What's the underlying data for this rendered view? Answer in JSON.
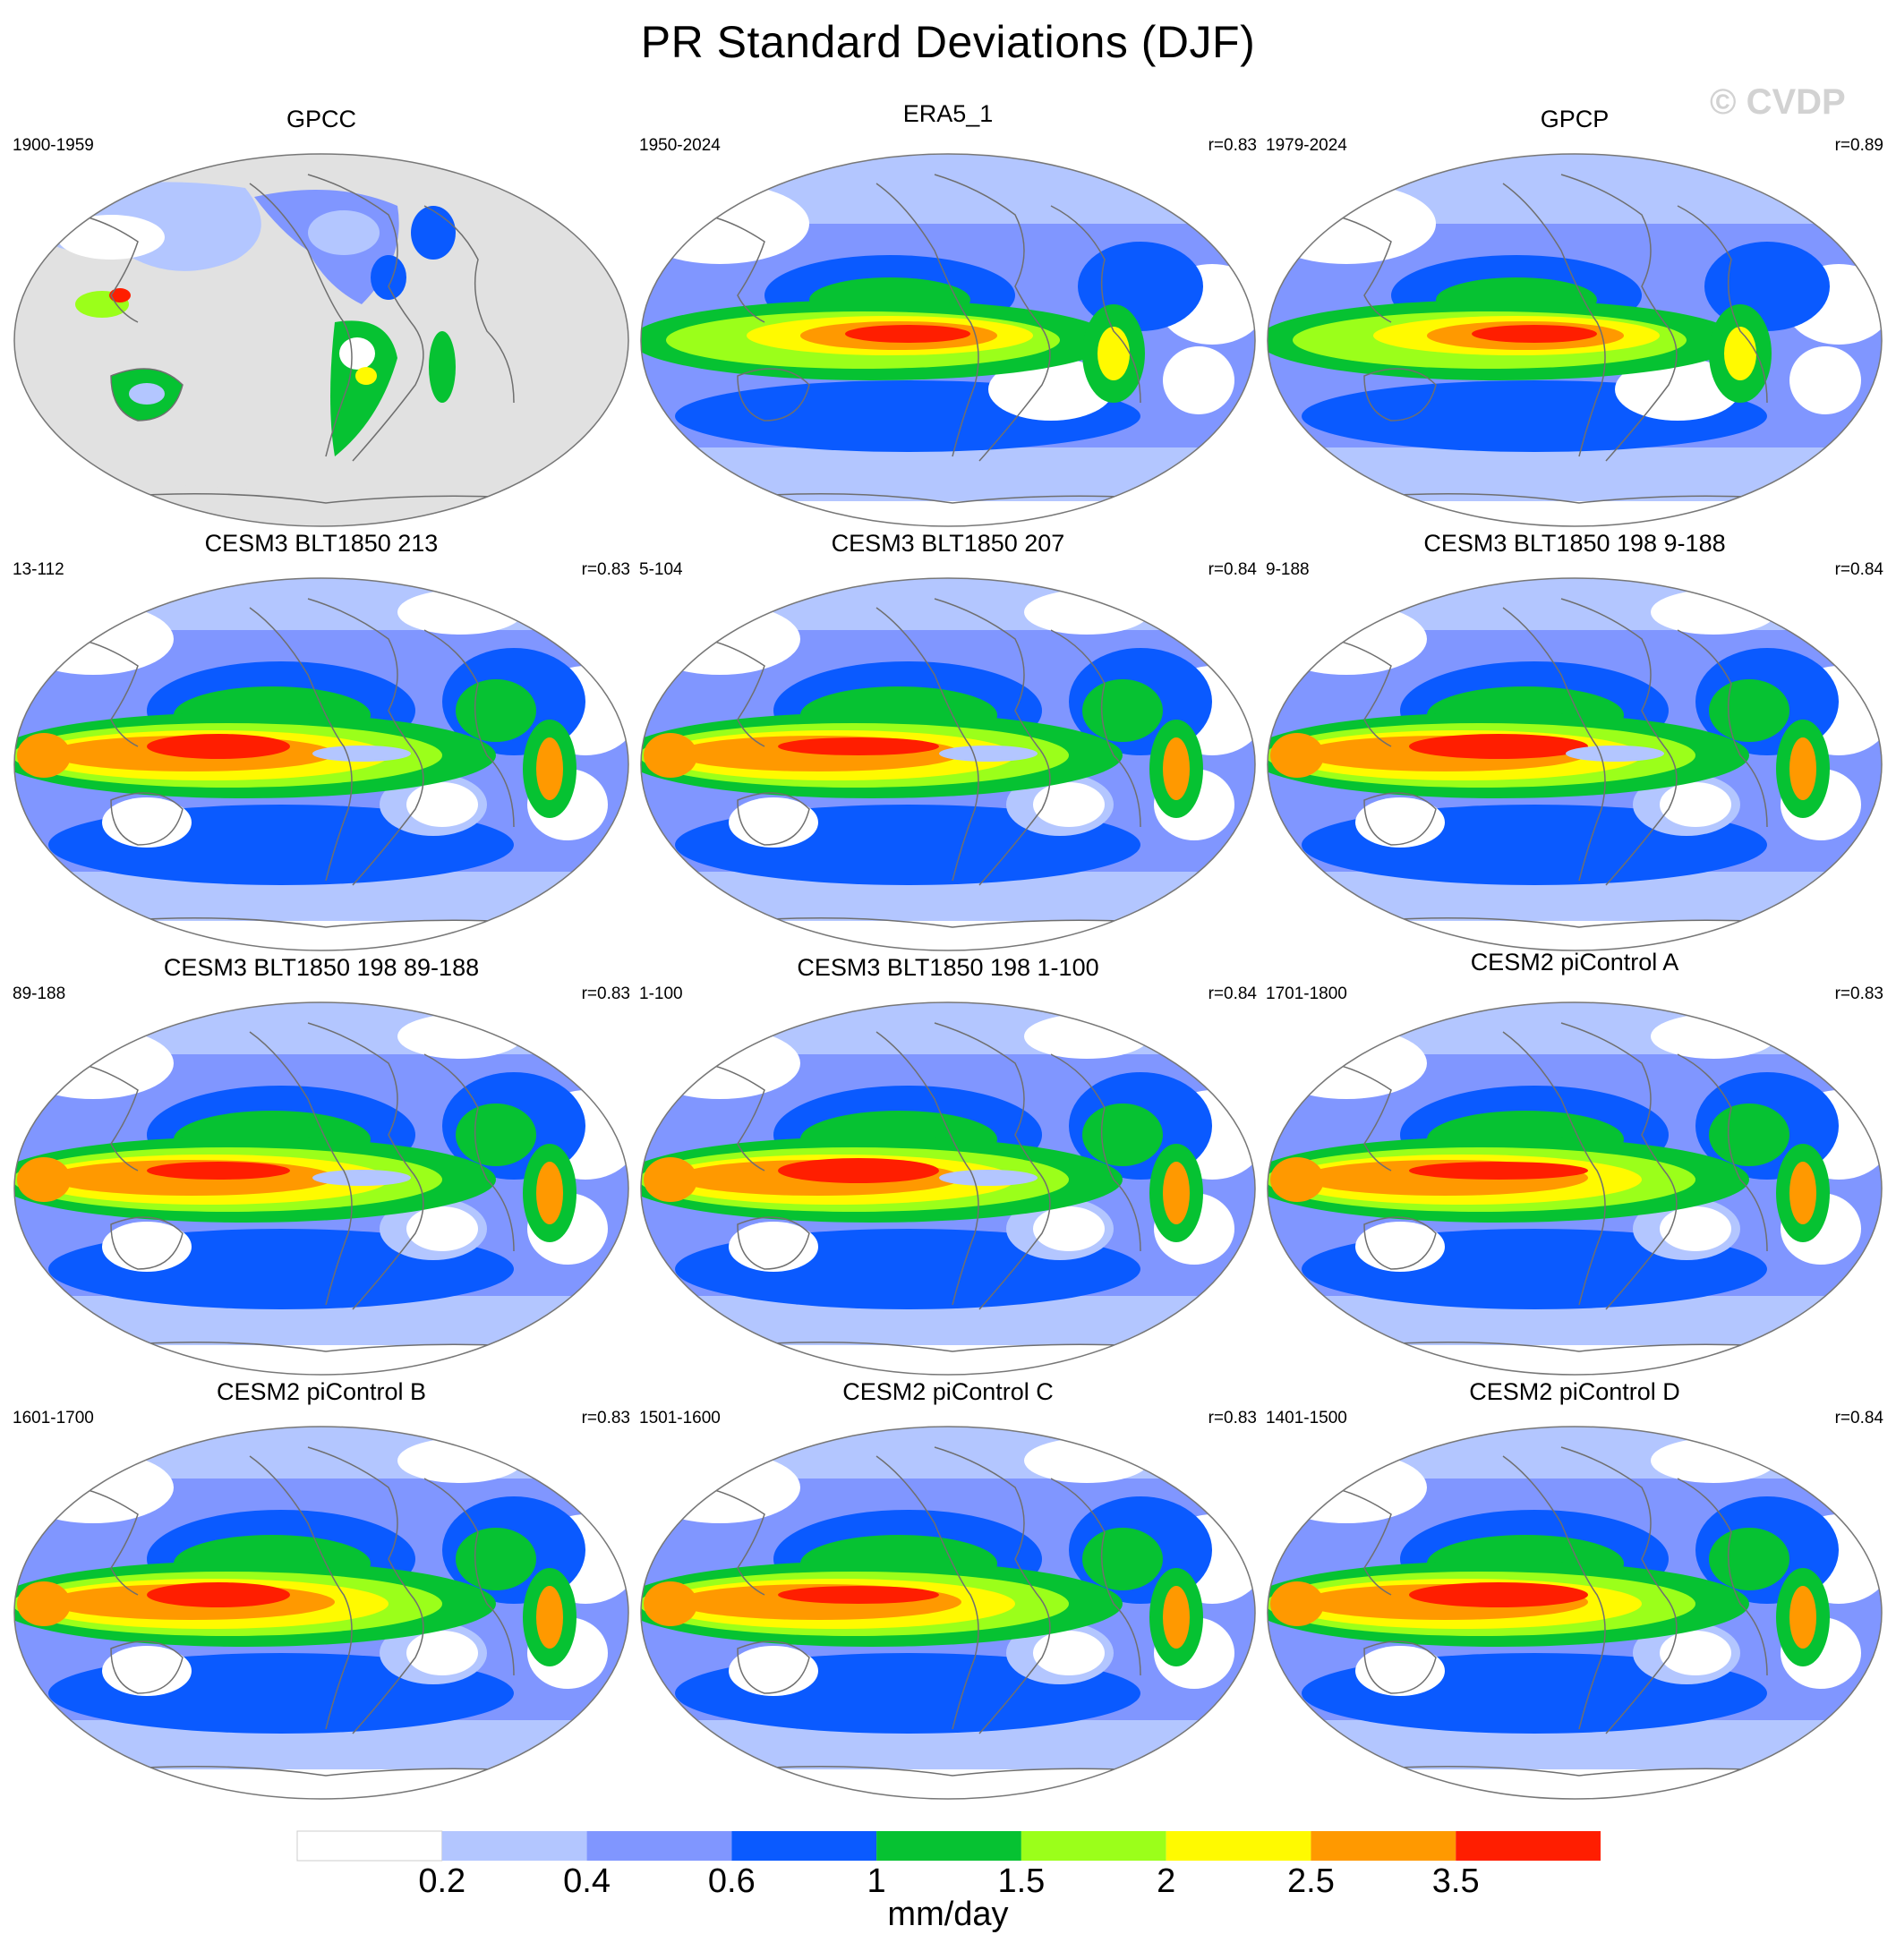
{
  "title": "PR Standard Deviations (DJF)",
  "watermark": "© CVDP",
  "colorbar": {
    "unit": "mm/day",
    "levels": [
      "0.2",
      "0.4",
      "0.6",
      "1",
      "1.5",
      "2",
      "2.5",
      "3.5"
    ],
    "colors": [
      "#ffffff",
      "#b3c6ff",
      "#8096ff",
      "#0a5aff",
      "#06c232",
      "#9bff1a",
      "#fffa00",
      "#ff9900",
      "#ff1e00"
    ]
  },
  "panels": [
    {
      "title": "GPCC",
      "period": "1900-1959",
      "r": ""
    },
    {
      "title": "ERA5_1",
      "period": "1950-2024",
      "r": "r=0.83"
    },
    {
      "title": "GPCP",
      "period": "1979-2024",
      "r": "r=0.89"
    },
    {
      "title": "CESM3 BLT1850 213",
      "period": "13-112",
      "r": "r=0.83"
    },
    {
      "title": "CESM3 BLT1850 207",
      "period": "5-104",
      "r": "r=0.84"
    },
    {
      "title": "CESM3 BLT1850 198 9-188",
      "period": "9-188",
      "r": "r=0.84"
    },
    {
      "title": "CESM3 BLT1850 198 89-188",
      "period": "89-188",
      "r": "r=0.83"
    },
    {
      "title": "CESM3 BLT1850 198 1-100",
      "period": "1-100",
      "r": "r=0.84"
    },
    {
      "title": "CESM2 piControl A",
      "period": "1701-1800",
      "r": "r=0.83"
    },
    {
      "title": "CESM2 piControl B",
      "period": "1601-1700",
      "r": "r=0.83"
    },
    {
      "title": "CESM2 piControl C",
      "period": "1501-1600",
      "r": "r=0.83"
    },
    {
      "title": "CESM2 piControl D",
      "period": "1401-1500",
      "r": "r=0.84"
    }
  ]
}
